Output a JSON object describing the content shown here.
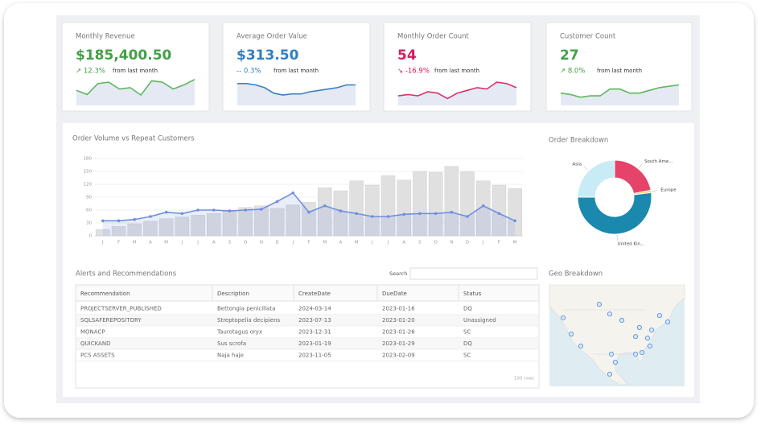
{
  "cards": [
    {
      "title": "Monthly Revenue",
      "value": "$185,400.50",
      "change": "↗ 12.3%",
      "note": "from last month",
      "color": "#43a047"
    },
    {
      "title": "Average Order Value",
      "value": "$313.50",
      "change": "-- 0.3%",
      "note": "from last month",
      "color": "#2f7fc4"
    },
    {
      "title": "Monthly Order Count",
      "value": "54",
      "change": "↘ -16.9%",
      "note": "from last month",
      "color": "#d81b60"
    },
    {
      "title": "Customer Count",
      "value": "27",
      "change": "↗ 8.0%",
      "note": "from last month",
      "color": "#43a047"
    }
  ],
  "chart_data": [
    {
      "type": "line",
      "color": "#5cb85c",
      "ylim": [
        0,
        100
      ],
      "values": [
        55,
        40,
        80,
        85,
        60,
        65,
        38,
        90,
        85,
        60,
        75,
        95
      ]
    },
    {
      "type": "line",
      "color": "#3a7fc6",
      "ylim": [
        0,
        100
      ],
      "values": [
        80,
        80,
        75,
        65,
        45,
        38,
        42,
        42,
        50,
        55,
        60,
        65,
        75,
        75
      ]
    },
    {
      "type": "line",
      "color": "#d6336c",
      "ylim": [
        0,
        100
      ],
      "values": [
        35,
        40,
        35,
        50,
        45,
        25,
        45,
        55,
        65,
        60,
        85,
        80,
        65
      ]
    },
    {
      "type": "line",
      "color": "#5cb85c",
      "ylim": [
        0,
        100
      ],
      "values": [
        45,
        40,
        30,
        35,
        35,
        60,
        60,
        45,
        45,
        55,
        65,
        70,
        75
      ]
    },
    {
      "type": "combo",
      "title": "Order Volume vs Repeat Customers",
      "categories": [
        "J",
        "F",
        "M",
        "A",
        "M",
        "J",
        "J",
        "A",
        "S",
        "O",
        "N",
        "D",
        "J",
        "F",
        "M",
        "A",
        "M",
        "J",
        "J",
        "A",
        "S",
        "O",
        "N",
        "D",
        "J",
        "F",
        "M"
      ],
      "ylim": [
        0,
        180
      ],
      "yticks": [
        0,
        30,
        60,
        90,
        120,
        150,
        180
      ],
      "grid": true,
      "series": [
        {
          "type": "bar",
          "color": "#e0e0e0",
          "values": [
            15,
            22,
            28,
            34,
            40,
            44,
            48,
            52,
            58,
            66,
            70,
            64,
            72,
            78,
            112,
            105,
            128,
            118,
            140,
            130,
            150,
            148,
            162,
            150,
            128,
            118,
            110
          ]
        },
        {
          "type": "line",
          "color": "#6f8fe0",
          "values": [
            35,
            35,
            38,
            45,
            55,
            52,
            60,
            60,
            58,
            60,
            62,
            80,
            100,
            55,
            70,
            58,
            52,
            45,
            45,
            50,
            52,
            52,
            55,
            45,
            70,
            52,
            35
          ]
        }
      ]
    },
    {
      "type": "donut",
      "title": "Order Breakdown",
      "categories": [
        "Asia",
        "South Ame...",
        "Europe",
        "United Kin..."
      ],
      "values": [
        25,
        22,
        1,
        52
      ],
      "colors": [
        "#c9ebf6",
        "#e6436b",
        "#f2c94c",
        "#1b88ad"
      ]
    }
  ],
  "table": {
    "title": "Alerts and Recommendations",
    "search_label": "Search",
    "columns": [
      "Recommendation",
      "Description",
      "CreateDate",
      "DueDate",
      "Status"
    ],
    "rows": [
      [
        "PROJECTSERVER_PUBLISHED",
        "Bettongia penicillata",
        "2024-03-14",
        "2023-01-16",
        "DQ"
      ],
      [
        "SQLSAFEREPOSITORY",
        "Streptopelia decipiens",
        "2023-07-13",
        "2023-01-20",
        "Unassigned"
      ],
      [
        "MONACP",
        "Taurotagus oryx",
        "2023-12-31",
        "2023-01-26",
        "SC"
      ],
      [
        "QUICKAND",
        "Sus scrofa",
        "2023-01-19",
        "2023-01-29",
        "DQ"
      ],
      [
        "PCS ASSETS",
        "Naja haje",
        "2023-11-05",
        "2023-02-09",
        "SC"
      ]
    ],
    "footer": "100 rows"
  },
  "map": {
    "title": "Geo Breakdown",
    "xlim": [
      -135,
      -55
    ],
    "ylim": [
      15,
      60
    ],
    "points": [
      {
        "lon": -105.5,
        "lat": 51.4
      },
      {
        "lon": -99.3,
        "lat": 47.1
      },
      {
        "lon": -92.1,
        "lat": 44.3
      },
      {
        "lon": -81.7,
        "lat": 41.1
      },
      {
        "lon": -74.5,
        "lat": 40.0
      },
      {
        "lon": -69.8,
        "lat": 46.4
      },
      {
        "lon": -65.0,
        "lat": 43.6
      },
      {
        "lon": -76.9,
        "lat": 36.4
      },
      {
        "lon": -84.0,
        "lat": 37.1
      },
      {
        "lon": -75.5,
        "lat": 32.9
      },
      {
        "lon": -84.0,
        "lat": 29.3
      },
      {
        "lon": -98.3,
        "lat": 29.3
      },
      {
        "lon": -122.1,
        "lat": 38.2
      },
      {
        "lon": -116.4,
        "lat": 32.9
      },
      {
        "lon": -96.0,
        "lat": 25.7
      },
      {
        "lon": -99.3,
        "lat": 20.4
      },
      {
        "lon": -80.2,
        "lat": 30.0
      },
      {
        "lon": -126.9,
        "lat": 45.4
      }
    ]
  }
}
